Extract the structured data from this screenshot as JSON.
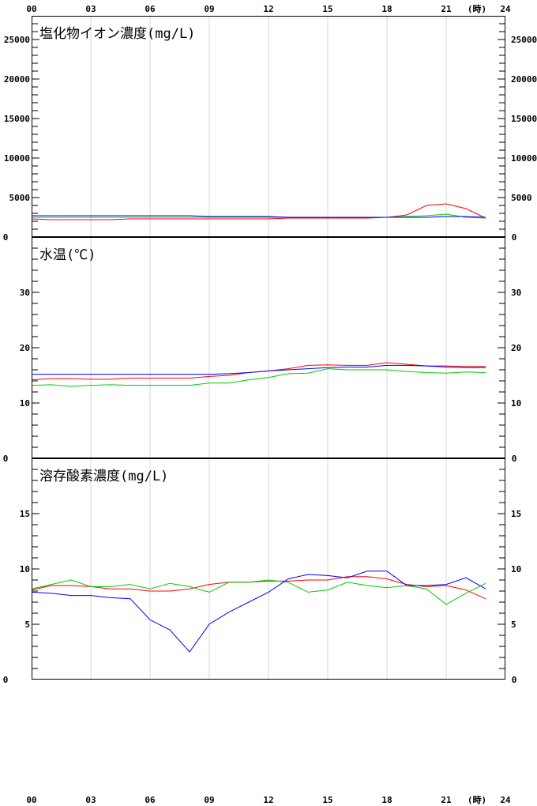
{
  "chart_data": [
    {
      "type": "line",
      "title": "塩化物イオン濃度(mg/L)",
      "x": [
        0,
        1,
        2,
        3,
        4,
        5,
        6,
        7,
        8,
        9,
        10,
        11,
        12,
        13,
        14,
        15,
        16,
        17,
        18,
        19,
        20,
        21,
        22,
        23
      ],
      "xlim": [
        0,
        24
      ],
      "ylim": [
        0,
        28000
      ],
      "yticks": [
        5000,
        10000,
        15000,
        20000,
        25000
      ],
      "zero_label": "0",
      "series": [
        {
          "color": "#ff0000",
          "values": [
            2300,
            2200,
            2200,
            2200,
            2200,
            2300,
            2300,
            2300,
            2300,
            2300,
            2300,
            2300,
            2300,
            2400,
            2400,
            2400,
            2400,
            2400,
            2500,
            2800,
            4000,
            4200,
            3600,
            2400
          ]
        },
        {
          "color": "#00cc00",
          "values": [
            2500,
            2500,
            2500,
            2500,
            2500,
            2500,
            2500,
            2500,
            2500,
            2500,
            2500,
            2500,
            2500,
            2500,
            2500,
            2500,
            2500,
            2500,
            2500,
            2600,
            2700,
            2900,
            2500,
            2400
          ]
        },
        {
          "color": "#0000ff",
          "values": [
            2700,
            2700,
            2700,
            2700,
            2700,
            2700,
            2700,
            2700,
            2700,
            2600,
            2600,
            2600,
            2600,
            2500,
            2500,
            2500,
            2500,
            2500,
            2500,
            2500,
            2500,
            2600,
            2600,
            2500
          ]
        }
      ]
    },
    {
      "type": "line",
      "title": "水温(℃)",
      "x": [
        0,
        1,
        2,
        3,
        4,
        5,
        6,
        7,
        8,
        9,
        10,
        11,
        12,
        13,
        14,
        15,
        16,
        17,
        18,
        19,
        20,
        21,
        22,
        23
      ],
      "xlim": [
        0,
        24
      ],
      "ylim": [
        0,
        40
      ],
      "yticks": [
        10,
        20,
        30
      ],
      "zero_label": "0",
      "series": [
        {
          "color": "#ff0000",
          "values": [
            14.2,
            14.4,
            14.4,
            14.3,
            14.3,
            14.5,
            14.5,
            14.5,
            14.5,
            14.8,
            15.0,
            15.5,
            15.8,
            16.2,
            16.8,
            16.9,
            16.8,
            16.8,
            17.3,
            17.0,
            16.7,
            16.7,
            16.6,
            16.6
          ]
        },
        {
          "color": "#00cc00",
          "values": [
            13.2,
            13.3,
            13.0,
            13.2,
            13.3,
            13.2,
            13.2,
            13.2,
            13.2,
            13.6,
            13.6,
            14.2,
            14.6,
            15.3,
            15.4,
            16.2,
            16.0,
            16.0,
            16.0,
            15.7,
            15.5,
            15.4,
            15.6,
            15.5
          ]
        },
        {
          "color": "#0000ff",
          "values": [
            15.2,
            15.2,
            15.2,
            15.2,
            15.2,
            15.2,
            15.2,
            15.2,
            15.2,
            15.2,
            15.3,
            15.5,
            15.8,
            16.0,
            16.2,
            16.4,
            16.5,
            16.5,
            16.8,
            16.8,
            16.7,
            16.5,
            16.4,
            16.4
          ]
        }
      ]
    },
    {
      "type": "line",
      "title": "溶存酸素濃度(mg/L)",
      "x": [
        0,
        1,
        2,
        3,
        4,
        5,
        6,
        7,
        8,
        9,
        10,
        11,
        12,
        13,
        14,
        15,
        16,
        17,
        18,
        19,
        20,
        21,
        22,
        23
      ],
      "xlim": [
        0,
        24
      ],
      "ylim": [
        0,
        20
      ],
      "yticks": [
        5,
        10,
        15
      ],
      "zero_label": "0",
      "series": [
        {
          "color": "#ff0000",
          "values": [
            8.1,
            8.5,
            8.5,
            8.4,
            8.2,
            8.2,
            8.0,
            8.0,
            8.2,
            8.6,
            8.8,
            8.8,
            8.9,
            8.9,
            9.0,
            9.0,
            9.3,
            9.3,
            9.1,
            8.6,
            8.4,
            8.5,
            8.1,
            7.3
          ]
        },
        {
          "color": "#00cc00",
          "values": [
            8.2,
            8.6,
            9.0,
            8.4,
            8.4,
            8.6,
            8.2,
            8.7,
            8.4,
            7.9,
            8.8,
            8.8,
            9.0,
            8.8,
            7.9,
            8.1,
            8.8,
            8.5,
            8.3,
            8.5,
            8.2,
            6.8,
            7.8,
            8.7
          ]
        },
        {
          "color": "#0000ff",
          "values": [
            7.9,
            7.8,
            7.6,
            7.6,
            7.4,
            7.3,
            5.4,
            4.5,
            2.5,
            5.0,
            6.1,
            7.0,
            7.9,
            9.1,
            9.5,
            9.4,
            9.2,
            9.8,
            9.8,
            8.5,
            8.5,
            8.6,
            9.2,
            8.2
          ]
        }
      ]
    }
  ],
  "x_axis": {
    "tick_labels": [
      "00",
      "03",
      "06",
      "09",
      "12",
      "15",
      "18",
      "21",
      "24"
    ],
    "unit": "(時)"
  }
}
